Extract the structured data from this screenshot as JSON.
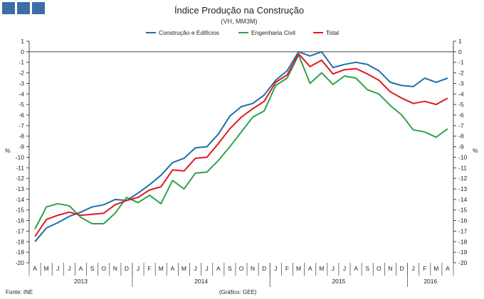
{
  "logo": {
    "squares": 3,
    "color": "#3a6ea5"
  },
  "chart_data": {
    "type": "line",
    "title": "Índice Produção na Construção",
    "subtitle": "(VH, MM3M)",
    "ylabel_left": "%",
    "ylabel_right": "%",
    "ylim": [
      -20,
      1
    ],
    "y_ticks": [
      1,
      0,
      -1,
      -2,
      -3,
      -4,
      -5,
      -6,
      -7,
      -8,
      -9,
      -10,
      -11,
      -12,
      -13,
      -14,
      -15,
      -16,
      -17,
      -18,
      -19,
      -20
    ],
    "months": [
      "A",
      "M",
      "J",
      "J",
      "A",
      "S",
      "O",
      "N",
      "D",
      "J",
      "F",
      "M",
      "A",
      "M",
      "J",
      "J",
      "A",
      "S",
      "O",
      "N",
      "D",
      "J",
      "F",
      "M",
      "A",
      "M",
      "J",
      "J",
      "A",
      "S",
      "O",
      "N",
      "D",
      "J",
      "F",
      "M",
      "A"
    ],
    "years": [
      {
        "label": "2013",
        "start": 0,
        "end": 8
      },
      {
        "label": "2014",
        "start": 9,
        "end": 20
      },
      {
        "label": "2015",
        "start": 21,
        "end": 32
      },
      {
        "label": "2016",
        "start": 33,
        "end": 36
      }
    ],
    "series": [
      {
        "name": "Construção e Edifícios",
        "color": "#1f6fa8",
        "values": [
          -18.0,
          -16.7,
          -16.2,
          -15.6,
          -15.2,
          -14.7,
          -14.5,
          -14.0,
          -14.1,
          -13.4,
          -12.6,
          -11.7,
          -10.5,
          -10.1,
          -9.1,
          -9.0,
          -7.8,
          -6.1,
          -5.2,
          -4.9,
          -4.1,
          -2.7,
          -1.8,
          0.0,
          -0.4,
          0.0,
          -1.5,
          -1.2,
          -1.0,
          -1.2,
          -1.8,
          -2.9,
          -3.2,
          -3.3,
          -2.5,
          -2.9,
          -2.5
        ]
      },
      {
        "name": "Engenharia Civil",
        "color": "#2ba34a",
        "values": [
          -16.8,
          -14.7,
          -14.4,
          -14.6,
          -15.7,
          -16.3,
          -16.3,
          -15.3,
          -13.8,
          -14.3,
          -13.6,
          -14.4,
          -12.2,
          -13.0,
          -11.5,
          -11.4,
          -10.3,
          -9.0,
          -7.6,
          -6.2,
          -5.6,
          -3.2,
          -2.5,
          -0.3,
          -3.0,
          -2.0,
          -3.1,
          -2.3,
          -2.5,
          -3.6,
          -4.0,
          -5.1,
          -6.0,
          -7.4,
          -7.6,
          -8.1,
          -7.3
        ]
      },
      {
        "name": "Total",
        "color": "#e0191e",
        "values": [
          -17.5,
          -15.9,
          -15.5,
          -15.2,
          -15.5,
          -15.4,
          -15.3,
          -14.5,
          -14.1,
          -13.8,
          -13.1,
          -12.8,
          -11.2,
          -11.3,
          -10.1,
          -10.0,
          -8.7,
          -7.3,
          -6.2,
          -5.4,
          -4.7,
          -2.9,
          -2.2,
          -0.2,
          -1.4,
          -0.8,
          -2.1,
          -1.7,
          -1.6,
          -2.1,
          -2.7,
          -3.8,
          -4.4,
          -4.9,
          -4.7,
          -5.0,
          -4.4
        ]
      }
    ],
    "grid": false,
    "legend": "top-center"
  },
  "footer": {
    "source": "Fonte: INE",
    "credit": "(Gráfico: GEE)"
  }
}
